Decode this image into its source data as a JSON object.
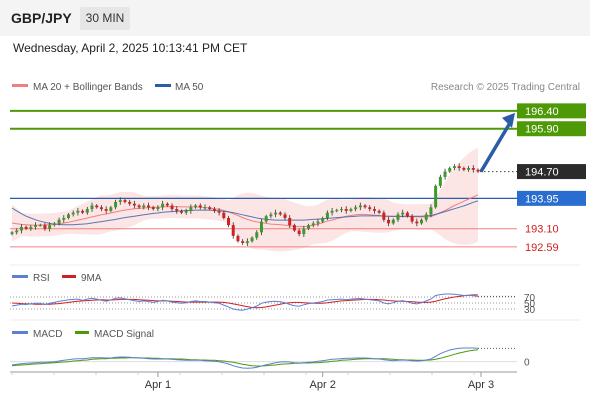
{
  "header": {
    "pair": "GBP/JPY",
    "timeframe": "30 MIN",
    "datetime": "Wednesday, April 2, 2025 10:13:41 PM CET"
  },
  "legend": {
    "ma20": "MA 20 + Bollinger Bands",
    "ma50": "MA 50",
    "credit": "Research © 2025 Trading Central",
    "rsi": "RSI",
    "rsi_ma": "9MA",
    "macd": "MACD",
    "macd_signal": "MACD Signal"
  },
  "colors": {
    "green_level": "#4e9a06",
    "blue_level": "#2a5ca8",
    "red_level": "#f08080",
    "candle_up": "#3a9a2a",
    "candle_down": "#d02020",
    "bollinger_fill": "#fbdcdc",
    "ma20": "#f08080",
    "ma50": "#2a5ca8",
    "rsi": "#5b7fd6",
    "rsi_ma": "#d02020",
    "macd": "#5b7fd6",
    "macd_signal": "#4e9a06"
  },
  "chart_data": [
    {
      "type": "candlestick",
      "title": "GBP/JPY 30 MIN",
      "x_ticks": [
        "Apr 1",
        "Apr 2",
        "Apr 3"
      ],
      "ylim": [
        192.28,
        196.76
      ],
      "levels": [
        {
          "value": 196.4,
          "label": "196.40",
          "color": "green"
        },
        {
          "value": 195.9,
          "label": "195.90",
          "color": "green"
        },
        {
          "value": 194.7,
          "label": "194.70",
          "color": "current"
        },
        {
          "value": 193.95,
          "label": "193.95",
          "color": "blue"
        },
        {
          "value": 193.1,
          "label": "193.10",
          "color": "red"
        },
        {
          "value": 192.59,
          "label": "192.59",
          "color": "red"
        }
      ],
      "close": [
        193.0,
        193.05,
        193.15,
        193.1,
        193.15,
        193.2,
        193.2,
        193.1,
        193.2,
        193.25,
        193.35,
        193.4,
        193.5,
        193.55,
        193.6,
        193.55,
        193.65,
        193.75,
        193.7,
        193.65,
        193.6,
        193.7,
        193.85,
        193.9,
        193.85,
        193.8,
        193.75,
        193.7,
        193.75,
        193.7,
        193.65,
        193.7,
        193.8,
        193.75,
        193.65,
        193.6,
        193.55,
        193.6,
        193.7,
        193.75,
        193.7,
        193.7,
        193.65,
        193.6,
        193.55,
        193.4,
        193.2,
        192.9,
        192.75,
        192.7,
        192.75,
        192.85,
        193.0,
        193.3,
        193.45,
        193.5,
        193.55,
        193.5,
        193.4,
        193.2,
        193.05,
        192.95,
        193.1,
        193.2,
        193.25,
        193.3,
        193.4,
        193.55,
        193.6,
        193.62,
        193.65,
        193.6,
        193.65,
        193.7,
        193.75,
        193.7,
        193.65,
        193.6,
        193.55,
        193.35,
        193.25,
        193.35,
        193.5,
        193.55,
        193.45,
        193.3,
        193.25,
        193.35,
        193.5,
        193.7,
        194.3,
        194.55,
        194.7,
        194.8,
        194.85,
        194.8,
        194.75,
        194.8,
        194.75,
        194.7
      ],
      "ma20": [
        193.26,
        193.24,
        193.22,
        193.21,
        193.2,
        193.2,
        193.2,
        193.21,
        193.21,
        193.22,
        193.24,
        193.26,
        193.28,
        193.31,
        193.34,
        193.37,
        193.4,
        193.43,
        193.46,
        193.49,
        193.51,
        193.54,
        193.57,
        193.6,
        193.62,
        193.64,
        193.66,
        193.67,
        193.68,
        193.69,
        193.7,
        193.7,
        193.71,
        193.72,
        193.72,
        193.72,
        193.71,
        193.71,
        193.71,
        193.71,
        193.7,
        193.69,
        193.68,
        193.66,
        193.64,
        193.61,
        193.57,
        193.52,
        193.47,
        193.41,
        193.36,
        193.32,
        193.29,
        193.27,
        193.25,
        193.23,
        193.22,
        193.21,
        193.2,
        193.18,
        193.17,
        193.16,
        193.16,
        193.17,
        193.2,
        193.23,
        193.27,
        193.31,
        193.34,
        193.38,
        193.41,
        193.45,
        193.47,
        193.49,
        193.5,
        193.5,
        193.49,
        193.48,
        193.47,
        193.46,
        193.45,
        193.44,
        193.44,
        193.44,
        193.44,
        193.44,
        193.43,
        193.43,
        193.43,
        193.44,
        193.49,
        193.55,
        193.61,
        193.68,
        193.75,
        193.81,
        193.87,
        193.93,
        193.99,
        194.05
      ],
      "ma50": [
        193.68,
        193.6,
        193.52,
        193.45,
        193.4,
        193.35,
        193.31,
        193.28,
        193.25,
        193.23,
        193.22,
        193.21,
        193.21,
        193.21,
        193.22,
        193.23,
        193.24,
        193.26,
        193.28,
        193.3,
        193.32,
        193.34,
        193.36,
        193.39,
        193.41,
        193.43,
        193.45,
        193.47,
        193.49,
        193.51,
        193.53,
        193.54,
        193.56,
        193.57,
        193.58,
        193.59,
        193.6,
        193.61,
        193.61,
        193.62,
        193.62,
        193.62,
        193.62,
        193.61,
        193.6,
        193.59,
        193.57,
        193.55,
        193.52,
        193.49,
        193.46,
        193.43,
        193.4,
        193.38,
        193.36,
        193.35,
        193.34,
        193.34,
        193.34,
        193.34,
        193.34,
        193.34,
        193.34,
        193.35,
        193.36,
        193.37,
        193.38,
        193.39,
        193.4,
        193.41,
        193.42,
        193.43,
        193.44,
        193.45,
        193.46,
        193.46,
        193.46,
        193.46,
        193.46,
        193.45,
        193.45,
        193.45,
        193.45,
        193.45,
        193.45,
        193.45,
        193.45,
        193.45,
        193.46,
        193.47,
        193.5,
        193.54,
        193.58,
        193.62,
        193.66,
        193.7,
        193.74,
        193.79,
        193.84,
        193.88
      ],
      "rsi": [
        40,
        43,
        46,
        45,
        47,
        49,
        49,
        45,
        49,
        52,
        56,
        58,
        61,
        62,
        63,
        59,
        63,
        66,
        63,
        59,
        56,
        60,
        66,
        67,
        64,
        61,
        58,
        55,
        57,
        55,
        52,
        55,
        59,
        57,
        53,
        51,
        49,
        51,
        55,
        57,
        55,
        55,
        53,
        51,
        49,
        43,
        37,
        30,
        27,
        26,
        30,
        34,
        40,
        49,
        53,
        55,
        56,
        54,
        51,
        45,
        41,
        39,
        44,
        48,
        50,
        52,
        55,
        60,
        61,
        62,
        63,
        61,
        63,
        64,
        65,
        63,
        61,
        59,
        57,
        50,
        47,
        51,
        56,
        58,
        54,
        49,
        47,
        51,
        57,
        63,
        75,
        78,
        80,
        80,
        79,
        77,
        75,
        76,
        74,
        72
      ],
      "rsi_ma": [
        50,
        49,
        48,
        47,
        47,
        46,
        46,
        46,
        46,
        47,
        48,
        50,
        52,
        54,
        56,
        57,
        58,
        59,
        60,
        61,
        60,
        60,
        61,
        62,
        62,
        62,
        62,
        61,
        60,
        59,
        58,
        57,
        57,
        57,
        56,
        55,
        54,
        53,
        53,
        53,
        53,
        53,
        53,
        53,
        53,
        52,
        50,
        47,
        44,
        41,
        38,
        35,
        34,
        35,
        37,
        40,
        43,
        46,
        49,
        51,
        52,
        52,
        51,
        50,
        49,
        49,
        49,
        51,
        53,
        55,
        57,
        58,
        59,
        60,
        61,
        62,
        62,
        62,
        61,
        60,
        58,
        57,
        56,
        56,
        55,
        54,
        53,
        52,
        52,
        53,
        56,
        60,
        64,
        67,
        70,
        72,
        74,
        76,
        77,
        77
      ],
      "macd": [
        -0.1,
        -0.08,
        -0.06,
        -0.05,
        -0.04,
        -0.03,
        -0.02,
        -0.02,
        -0.01,
        0.0,
        0.02,
        0.04,
        0.06,
        0.08,
        0.09,
        0.09,
        0.1,
        0.12,
        0.12,
        0.12,
        0.11,
        0.11,
        0.13,
        0.14,
        0.14,
        0.13,
        0.12,
        0.11,
        0.1,
        0.09,
        0.08,
        0.08,
        0.08,
        0.08,
        0.07,
        0.06,
        0.05,
        0.04,
        0.04,
        0.04,
        0.04,
        0.03,
        0.02,
        0.01,
        0.0,
        -0.03,
        -0.07,
        -0.12,
        -0.16,
        -0.19,
        -0.2,
        -0.19,
        -0.17,
        -0.13,
        -0.09,
        -0.06,
        -0.03,
        -0.01,
        0.0,
        -0.01,
        -0.03,
        -0.04,
        -0.03,
        -0.02,
        -0.01,
        0.01,
        0.03,
        0.05,
        0.07,
        0.08,
        0.09,
        0.1,
        0.1,
        0.11,
        0.11,
        0.11,
        0.1,
        0.09,
        0.08,
        0.06,
        0.04,
        0.03,
        0.04,
        0.05,
        0.04,
        0.03,
        0.02,
        0.03,
        0.05,
        0.08,
        0.16,
        0.24,
        0.3,
        0.35,
        0.38,
        0.4,
        0.41,
        0.41,
        0.41,
        0.4
      ],
      "macd_signal": [
        -0.12,
        -0.11,
        -0.1,
        -0.09,
        -0.08,
        -0.07,
        -0.06,
        -0.05,
        -0.04,
        -0.03,
        -0.02,
        -0.01,
        0.0,
        0.02,
        0.03,
        0.04,
        0.05,
        0.07,
        0.08,
        0.09,
        0.09,
        0.1,
        0.1,
        0.11,
        0.11,
        0.12,
        0.12,
        0.12,
        0.11,
        0.11,
        0.1,
        0.1,
        0.09,
        0.09,
        0.09,
        0.08,
        0.08,
        0.07,
        0.06,
        0.06,
        0.05,
        0.05,
        0.04,
        0.04,
        0.03,
        0.02,
        0.0,
        -0.02,
        -0.05,
        -0.08,
        -0.1,
        -0.12,
        -0.13,
        -0.13,
        -0.12,
        -0.11,
        -0.1,
        -0.08,
        -0.07,
        -0.06,
        -0.05,
        -0.05,
        -0.04,
        -0.04,
        -0.03,
        -0.03,
        -0.02,
        -0.01,
        0.01,
        0.02,
        0.04,
        0.05,
        0.06,
        0.07,
        0.08,
        0.09,
        0.09,
        0.09,
        0.09,
        0.09,
        0.08,
        0.07,
        0.06,
        0.06,
        0.05,
        0.05,
        0.04,
        0.04,
        0.04,
        0.05,
        0.07,
        0.1,
        0.14,
        0.18,
        0.22,
        0.26,
        0.29,
        0.32,
        0.34,
        0.36
      ],
      "rsi_levels": [
        70,
        50,
        30
      ],
      "macd_zero_label": "0"
    }
  ]
}
